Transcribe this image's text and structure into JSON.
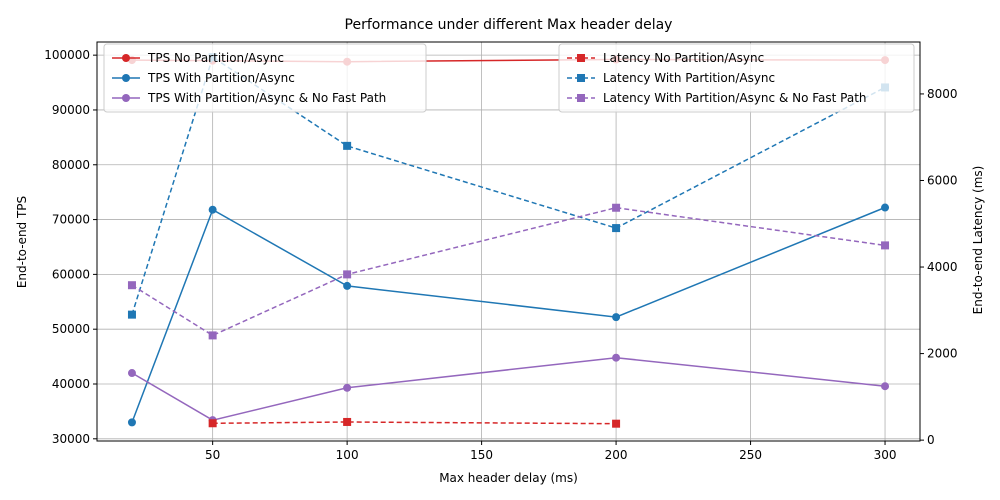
{
  "chart_data": {
    "type": "line",
    "title": "Performance under different Max header delay",
    "xlabel": "Max header delay (ms)",
    "ylabel_left": "End-to-end TPS",
    "ylabel_right": "End-to-end Latency (ms)",
    "xlim": [
      7,
      313
    ],
    "ylim_left": [
      29600,
      102400
    ],
    "ylim_right": [
      -20,
      9200
    ],
    "x_ticks": [
      50,
      100,
      150,
      200,
      250,
      300
    ],
    "y_ticks_left": [
      30000,
      40000,
      50000,
      60000,
      70000,
      80000,
      90000,
      100000
    ],
    "y_ticks_right": [
      0,
      2000,
      4000,
      6000,
      8000
    ],
    "grid": true,
    "legend_left_placement": "top-left",
    "legend_right_placement": "top-right",
    "series": [
      {
        "name": "TPS No Partition/Async",
        "axis": "left",
        "style": "solid",
        "marker": "circle",
        "color": "#d62728",
        "x": [
          20,
          50,
          100,
          200,
          300
        ],
        "values": [
          99100,
          99000,
          98800,
          99200,
          99100
        ]
      },
      {
        "name": "TPS With Partition/Async",
        "axis": "left",
        "style": "solid",
        "marker": "circle",
        "color": "#1f77b4",
        "x": [
          20,
          50,
          100,
          200,
          300
        ],
        "values": [
          33000,
          71800,
          57900,
          52200,
          72200
        ]
      },
      {
        "name": "TPS With Partition/Async & No Fast Path",
        "axis": "left",
        "style": "solid",
        "marker": "circle",
        "color": "#9467bd",
        "x": [
          20,
          50,
          100,
          200,
          300
        ],
        "values": [
          42000,
          33400,
          39300,
          44800,
          39600
        ]
      },
      {
        "name": "Latency No Partition/Async",
        "axis": "right",
        "style": "dashed",
        "marker": "square",
        "color": "#d62728",
        "x": [
          50,
          100,
          200
        ],
        "values": [
          390,
          420,
          380
        ]
      },
      {
        "name": "Latency With Partition/Async",
        "axis": "right",
        "style": "dashed",
        "marker": "square",
        "color": "#1f77b4",
        "x": [
          20,
          50,
          100,
          200,
          300
        ],
        "values": [
          2900,
          8850,
          6800,
          4900,
          8150
        ]
      },
      {
        "name": "Latency With Partition/Async & No Fast Path",
        "axis": "right",
        "style": "dashed",
        "marker": "square",
        "color": "#9467bd",
        "x": [
          20,
          50,
          100,
          200,
          300
        ],
        "values": [
          3580,
          2420,
          3830,
          5370,
          4500
        ]
      }
    ]
  }
}
